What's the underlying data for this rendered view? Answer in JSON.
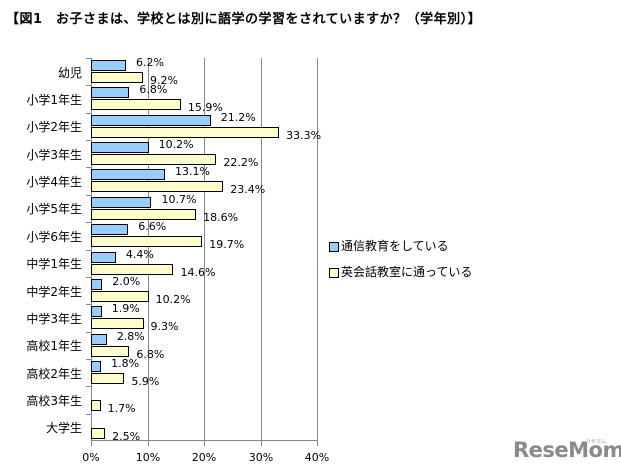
{
  "title": "【図1　お子さまは、学校とは別に語学の学習をされていますか？（学年別）】",
  "chart_data": {
    "type": "bar",
    "orientation": "horizontal",
    "title": "【図1　お子さまは、学校とは別に語学の学習をされていますか？（学年別）】",
    "xlabel": "",
    "ylabel": "",
    "xlim": [
      0,
      40
    ],
    "x_ticks": [
      "0%",
      "10%",
      "20%",
      "30%",
      "40%"
    ],
    "grid": true,
    "legend_position": "right",
    "categories": [
      "幼児",
      "小学1年生",
      "小学2年生",
      "小学3年生",
      "小学4年生",
      "小学5年生",
      "小学6年生",
      "中学1年生",
      "中学2年生",
      "中学3年生",
      "高校1年生",
      "高校2年生",
      "高校3年生",
      "大学生"
    ],
    "series": [
      {
        "name": "通信教育をしている",
        "color": "#99ccff",
        "values": [
          6.2,
          6.8,
          21.2,
          10.2,
          13.1,
          10.7,
          6.6,
          4.4,
          2.0,
          1.9,
          2.8,
          1.8,
          null,
          null
        ],
        "labels": [
          "6.2%",
          "6.8%",
          "21.2%",
          "10.2%",
          "13.1%",
          "10.7%",
          "6.6%",
          "4.4%",
          "2.0%",
          "1.9%",
          "2.8%",
          "1.8%",
          "",
          ""
        ]
      },
      {
        "name": "英会話教室に通っている",
        "color": "#ffffcc",
        "values": [
          9.2,
          15.9,
          33.3,
          22.2,
          23.4,
          18.6,
          19.7,
          14.6,
          10.2,
          9.3,
          6.8,
          5.9,
          1.7,
          2.5
        ],
        "labels": [
          "9.2%",
          "15.9%",
          "33.3%",
          "22.2%",
          "23.4%",
          "18.6%",
          "19.7%",
          "14.6%",
          "10.2%",
          "9.3%",
          "6.8%",
          "5.9%",
          "1.7%",
          "2.5%"
        ]
      }
    ]
  },
  "legend": {
    "items": [
      "通信教育をしている",
      "英会話教室に通っている"
    ]
  },
  "logo": {
    "text": "ReseMom",
    "sub": "リセマム"
  }
}
